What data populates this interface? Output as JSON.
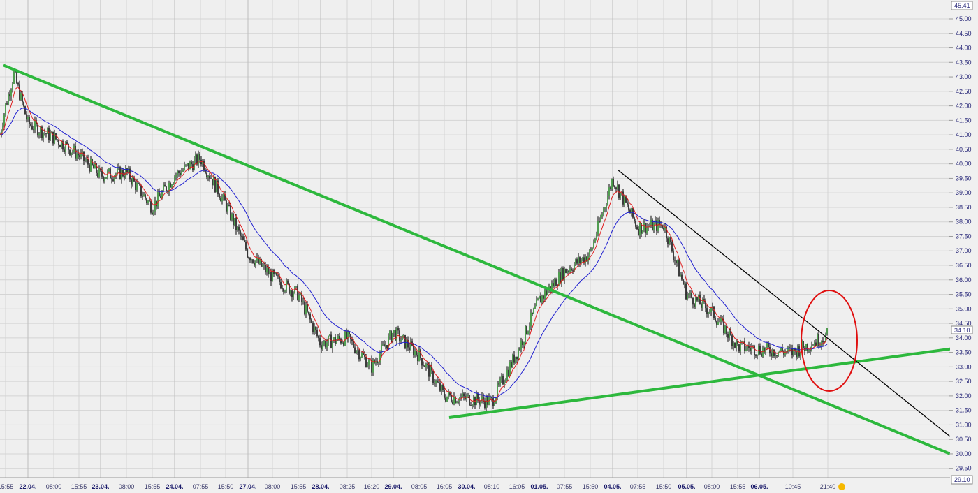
{
  "chart_data": {
    "type": "candlestick",
    "title": "",
    "xlabel": "",
    "ylabel": "",
    "ylim": [
      29.1,
      45.41
    ],
    "grid": true,
    "y_ticks": [
      "45.00",
      "44.50",
      "44.00",
      "43.50",
      "43.00",
      "42.50",
      "42.00",
      "41.50",
      "41.00",
      "40.50",
      "40.00",
      "39.50",
      "39.00",
      "38.50",
      "38.00",
      "37.50",
      "37.00",
      "36.50",
      "36.00",
      "35.50",
      "35.00",
      "34.50",
      "34.00",
      "33.50",
      "33.00",
      "32.50",
      "32.00",
      "31.50",
      "31.00",
      "30.50",
      "30.00",
      "29.50"
    ],
    "y_max_label": "45.41",
    "y_min_label": "29.10",
    "last_price_label": "34.10",
    "x_ticks": [
      {
        "label": "15:55",
        "bold": false
      },
      {
        "label": "22.04.",
        "bold": true
      },
      {
        "label": "08:00",
        "bold": false
      },
      {
        "label": "15:55",
        "bold": false
      },
      {
        "label": "23.04.",
        "bold": true
      },
      {
        "label": "08:00",
        "bold": false
      },
      {
        "label": "15:55",
        "bold": false
      },
      {
        "label": "24.04.",
        "bold": true
      },
      {
        "label": "07:55",
        "bold": false
      },
      {
        "label": "15:50",
        "bold": false
      },
      {
        "label": "27.04.",
        "bold": true
      },
      {
        "label": "08:00",
        "bold": false
      },
      {
        "label": "15:55",
        "bold": false
      },
      {
        "label": "28.04.",
        "bold": true
      },
      {
        "label": "08:25",
        "bold": false
      },
      {
        "label": "16:20",
        "bold": false
      },
      {
        "label": "29.04.",
        "bold": true
      },
      {
        "label": "08:05",
        "bold": false
      },
      {
        "label": "16:05",
        "bold": false
      },
      {
        "label": "30.04.",
        "bold": true
      },
      {
        "label": "08:10",
        "bold": false
      },
      {
        "label": "16:05",
        "bold": false
      },
      {
        "label": "01.05.",
        "bold": true
      },
      {
        "label": "07:55",
        "bold": false
      },
      {
        "label": "15:50",
        "bold": false
      },
      {
        "label": "04.05.",
        "bold": true
      },
      {
        "label": "07:55",
        "bold": false
      },
      {
        "label": "15:50",
        "bold": false
      },
      {
        "label": "05.05.",
        "bold": true
      },
      {
        "label": "08:00",
        "bold": false
      },
      {
        "label": "15:55",
        "bold": false
      },
      {
        "label": "06.05.",
        "bold": true
      },
      {
        "label": "10:45",
        "bold": false
      },
      {
        "label": "21:40",
        "bold": false
      }
    ],
    "series": [
      {
        "type": "price",
        "values": [
          42.0,
          41.4,
          40.9,
          40.3,
          39.6,
          39.7,
          38.5,
          39.6,
          40.2,
          38.6,
          36.9,
          36.1,
          35.5,
          33.8,
          34.0,
          33.0,
          34.2,
          33.4,
          32.0,
          31.9,
          31.8,
          33.5,
          35.3,
          36.3,
          36.9,
          39.5,
          37.8,
          37.9,
          35.5,
          34.9,
          33.7,
          33.6,
          33.5,
          34.1
        ]
      },
      {
        "type": "moving-average-short",
        "color": "#e02020"
      },
      {
        "type": "moving-average-long",
        "color": "#2020d0"
      }
    ],
    "peak_price": 43.1,
    "trendlines": [
      {
        "color": "#2db83d",
        "from_price": 43.4,
        "to_price": 30.0
      },
      {
        "color": "#2db83d",
        "from_price": 31.25,
        "to_price": 33.75
      },
      {
        "color": "#000000",
        "from_price": 39.8,
        "to_price": 30.6
      }
    ],
    "highlight": {
      "shape": "ellipse",
      "color": "#e01010"
    },
    "live_icon_color": "#f5b800"
  }
}
